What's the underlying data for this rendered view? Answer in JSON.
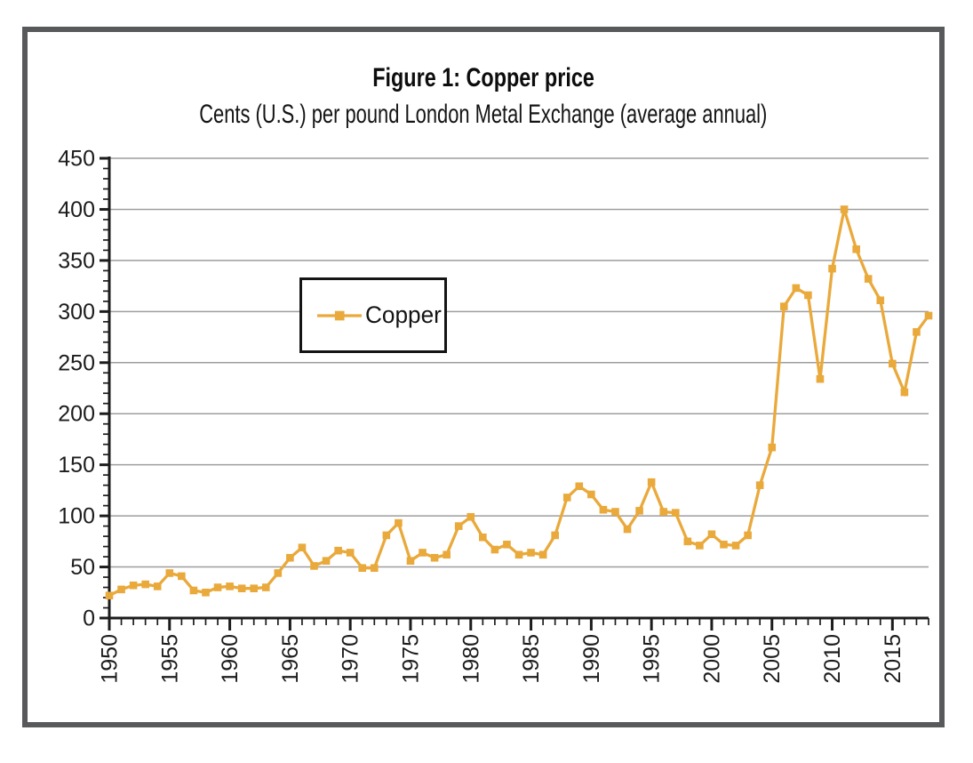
{
  "colors": {
    "series": "#E9A93B",
    "grid": "#9E9E9E",
    "axis": "#1C1C1C",
    "text": "#1C1C1C",
    "frame": "#58595B",
    "legend_border": "#141414"
  },
  "chart_data": {
    "type": "line",
    "title": "Figure 1: Copper price",
    "subtitle": "Cents (U.S.) per pound London Metal Exchange (average annual)",
    "xlabel": "",
    "ylabel": "",
    "xlim": [
      1950,
      2018
    ],
    "ylim": [
      0,
      450
    ],
    "yticks": [
      0,
      50,
      100,
      150,
      200,
      250,
      300,
      350,
      400,
      450
    ],
    "ytick_interval": 50,
    "y_minor_interval": 10,
    "xticks": [
      1950,
      1955,
      1960,
      1965,
      1970,
      1975,
      1980,
      1985,
      1990,
      1995,
      2000,
      2005,
      2010,
      2015
    ],
    "xtick_interval": 5,
    "x_minor_interval": 1,
    "grid": "horizontal",
    "legend": {
      "position": "inside-upper-left",
      "entries": [
        "Copper"
      ]
    },
    "series": [
      {
        "name": "Copper",
        "marker": "square",
        "color": "#E9A93B",
        "x": [
          1950,
          1951,
          1952,
          1953,
          1954,
          1955,
          1956,
          1957,
          1958,
          1959,
          1960,
          1961,
          1962,
          1963,
          1964,
          1965,
          1966,
          1967,
          1968,
          1969,
          1970,
          1971,
          1972,
          1973,
          1974,
          1975,
          1976,
          1977,
          1978,
          1979,
          1980,
          1981,
          1982,
          1983,
          1984,
          1985,
          1986,
          1987,
          1988,
          1989,
          1990,
          1991,
          1992,
          1993,
          1994,
          1995,
          1996,
          1997,
          1998,
          1999,
          2000,
          2001,
          2002,
          2003,
          2004,
          2005,
          2006,
          2007,
          2008,
          2009,
          2010,
          2011,
          2012,
          2013,
          2014,
          2015,
          2016,
          2017,
          2018
        ],
        "values": [
          22,
          28,
          32,
          33,
          31,
          44,
          41,
          27,
          25,
          30,
          31,
          29,
          29,
          30,
          44,
          59,
          69,
          51,
          56,
          66,
          64,
          49,
          49,
          81,
          93,
          56,
          64,
          59,
          62,
          90,
          99,
          79,
          67,
          72,
          62,
          64,
          62,
          81,
          118,
          129,
          121,
          106,
          104,
          87,
          105,
          133,
          104,
          103,
          75,
          71,
          82,
          72,
          71,
          81,
          130,
          167,
          305,
          323,
          316,
          234,
          342,
          400,
          361,
          332,
          311,
          249,
          221,
          280,
          296
        ]
      }
    ]
  }
}
